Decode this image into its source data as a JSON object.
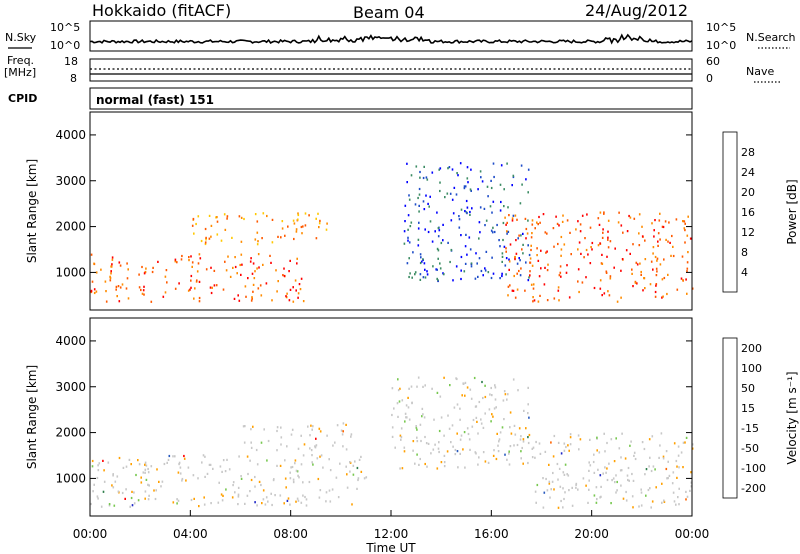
{
  "header": {
    "station": "Hokkaido (fitACF)",
    "beam": "Beam 04",
    "date": "24/Aug/2012"
  },
  "noise_panel": {
    "left_label": "N.Sky",
    "left_ticks": [
      "10^5",
      "10^0"
    ],
    "right_ticks": [
      "10^5",
      "10^0"
    ],
    "right_label": "N.Search"
  },
  "freq_panel": {
    "left_label_line1": "Freq.",
    "left_label_line2": "[MHz]",
    "left_ticks": [
      "18",
      "8"
    ],
    "right_ticks": [
      "60",
      "0"
    ],
    "right_label": "Nave"
  },
  "cpid_panel": {
    "label": "CPID",
    "text": "normal (fast) 151"
  },
  "time_axis": {
    "label": "Time UT",
    "ticks": [
      "00:00",
      "04:00",
      "08:00",
      "12:00",
      "16:00",
      "20:00",
      "00:00"
    ]
  },
  "chart_data": [
    {
      "type": "heatmap",
      "title": "Power",
      "ylabel": "Slant Range [km]",
      "yticks": [
        1000,
        2000,
        3000,
        4000
      ],
      "ylim": [
        180,
        4500
      ],
      "xlim_hours": [
        0,
        24
      ],
      "colorbar_label": "Power [dB]",
      "colorbar_ticks": [
        "28",
        "24",
        "20",
        "16",
        "12",
        "8",
        "4"
      ],
      "colors": [
        "#0000ff",
        "#1e4dc8",
        "#3c8c64",
        "#50c832",
        "#ffc800",
        "#ff8c00",
        "#ff5a00",
        "#ff0000"
      ],
      "scatter_regions": [
        {
          "t_start": 0.0,
          "t_end": 8.5,
          "r_start": 350,
          "r_end": 1400,
          "level": "high"
        },
        {
          "t_start": 4.0,
          "t_end": 9.5,
          "r_start": 1600,
          "r_end": 2300,
          "level": "mid-high"
        },
        {
          "t_start": 12.5,
          "t_end": 17.5,
          "r_start": 800,
          "r_end": 3400,
          "level": "low"
        },
        {
          "t_start": 16.5,
          "t_end": 24.0,
          "r_start": 350,
          "r_end": 2300,
          "level": "high"
        }
      ]
    },
    {
      "type": "heatmap",
      "title": "Velocity",
      "ylabel": "Slant Range [km]",
      "yticks": [
        1000,
        2000,
        3000,
        4000
      ],
      "ylim": [
        180,
        4500
      ],
      "xlim_hours": [
        0,
        24
      ],
      "colorbar_label": "Velocity [m s^-1]",
      "colorbar_ticks": [
        "200",
        "100",
        "50",
        "15",
        "-15",
        "-50",
        "-100",
        "-200"
      ],
      "colors": [
        "#1e28c8",
        "#285abe",
        "#2d7d4b",
        "#78c850",
        "#c8c8c8",
        "#ffa000",
        "#ff6400",
        "#ff0000"
      ],
      "scatter_regions": [
        {
          "t_start": 0.0,
          "t_end": 11.0,
          "r_start": 350,
          "r_end": 1500,
          "level": "near-zero"
        },
        {
          "t_start": 6.0,
          "t_end": 10.5,
          "r_start": 1600,
          "r_end": 2200,
          "level": "near-zero"
        },
        {
          "t_start": 12.0,
          "t_end": 17.5,
          "r_start": 1200,
          "r_end": 3200,
          "level": "near-zero"
        },
        {
          "t_start": 17.5,
          "t_end": 24.0,
          "r_start": 350,
          "r_end": 2000,
          "level": "near-zero"
        }
      ]
    }
  ]
}
